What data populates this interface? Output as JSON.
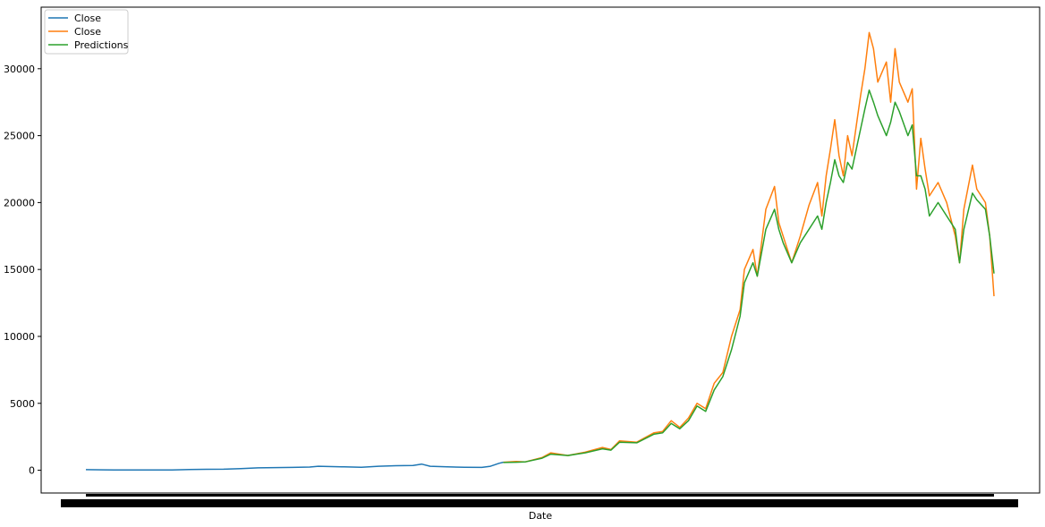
{
  "chart_data": {
    "type": "line",
    "title": "",
    "xlabel": "Date",
    "ylabel": "",
    "ylim": [
      -1700,
      34600
    ],
    "yticks": [
      0,
      5000,
      10000,
      15000,
      20000,
      25000,
      30000
    ],
    "grid": false,
    "legend_position": "top-left",
    "x_tick_labels_overlapping": true,
    "series": [
      {
        "name": "Close",
        "color": "#1f77b4",
        "points": [
          [
            0,
            45
          ],
          [
            0.02,
            30
          ],
          [
            0.04,
            20
          ],
          [
            0.06,
            15
          ],
          [
            0.08,
            15
          ],
          [
            0.1,
            25
          ],
          [
            0.12,
            50
          ],
          [
            0.14,
            70
          ],
          [
            0.16,
            80
          ],
          [
            0.18,
            120
          ],
          [
            0.2,
            180
          ],
          [
            0.22,
            200
          ],
          [
            0.24,
            210
          ],
          [
            0.26,
            240
          ],
          [
            0.27,
            300
          ],
          [
            0.3,
            250
          ],
          [
            0.32,
            220
          ],
          [
            0.34,
            300
          ],
          [
            0.36,
            340
          ],
          [
            0.38,
            360
          ],
          [
            0.39,
            460
          ],
          [
            0.4,
            300
          ],
          [
            0.42,
            250
          ],
          [
            0.44,
            220
          ],
          [
            0.46,
            210
          ],
          [
            0.47,
            300
          ],
          [
            0.48,
            520
          ],
          [
            0.485,
            600
          ]
        ]
      },
      {
        "name": "Close",
        "color": "#ff7f0e",
        "points": [
          [
            0.485,
            600
          ],
          [
            0.5,
            650
          ],
          [
            0.51,
            620
          ],
          [
            0.53,
            950
          ],
          [
            0.54,
            1300
          ],
          [
            0.56,
            1100
          ],
          [
            0.58,
            1350
          ],
          [
            0.6,
            1700
          ],
          [
            0.61,
            1550
          ],
          [
            0.62,
            2200
          ],
          [
            0.64,
            2100
          ],
          [
            0.66,
            2800
          ],
          [
            0.67,
            2900
          ],
          [
            0.68,
            3700
          ],
          [
            0.69,
            3200
          ],
          [
            0.7,
            3900
          ],
          [
            0.71,
            5000
          ],
          [
            0.72,
            4600
          ],
          [
            0.73,
            6500
          ],
          [
            0.74,
            7300
          ],
          [
            0.75,
            10000
          ],
          [
            0.76,
            12000
          ],
          [
            0.765,
            15000
          ],
          [
            0.775,
            16500
          ],
          [
            0.78,
            14500
          ],
          [
            0.79,
            19500
          ],
          [
            0.8,
            21200
          ],
          [
            0.805,
            18500
          ],
          [
            0.81,
            17500
          ],
          [
            0.82,
            15500
          ],
          [
            0.83,
            17500
          ],
          [
            0.84,
            19800
          ],
          [
            0.85,
            21500
          ],
          [
            0.855,
            19000
          ],
          [
            0.86,
            22000
          ],
          [
            0.865,
            24000
          ],
          [
            0.87,
            26200
          ],
          [
            0.875,
            23500
          ],
          [
            0.88,
            22000
          ],
          [
            0.885,
            25000
          ],
          [
            0.89,
            23500
          ],
          [
            0.9,
            28000
          ],
          [
            0.905,
            30000
          ],
          [
            0.91,
            32700
          ],
          [
            0.915,
            31500
          ],
          [
            0.92,
            29000
          ],
          [
            0.93,
            30500
          ],
          [
            0.935,
            27500
          ],
          [
            0.94,
            31500
          ],
          [
            0.945,
            29000
          ],
          [
            0.955,
            27500
          ],
          [
            0.96,
            28500
          ],
          [
            0.965,
            21000
          ],
          [
            0.97,
            24800
          ],
          [
            0.975,
            22500
          ],
          [
            0.98,
            20500
          ],
          [
            0.99,
            21500
          ],
          [
            1.0,
            20000
          ],
          [
            1.01,
            17500
          ],
          [
            1.015,
            15500
          ],
          [
            1.02,
            19500
          ],
          [
            1.03,
            22800
          ],
          [
            1.035,
            21000
          ],
          [
            1.045,
            20000
          ],
          [
            1.05,
            17500
          ],
          [
            1.055,
            13000
          ]
        ]
      },
      {
        "name": "Predictions",
        "color": "#2ca02c",
        "points": [
          [
            0.485,
            580
          ],
          [
            0.5,
            600
          ],
          [
            0.51,
            620
          ],
          [
            0.53,
            900
          ],
          [
            0.54,
            1200
          ],
          [
            0.56,
            1100
          ],
          [
            0.58,
            1300
          ],
          [
            0.6,
            1600
          ],
          [
            0.61,
            1500
          ],
          [
            0.62,
            2100
          ],
          [
            0.64,
            2050
          ],
          [
            0.66,
            2700
          ],
          [
            0.67,
            2800
          ],
          [
            0.68,
            3500
          ],
          [
            0.69,
            3100
          ],
          [
            0.7,
            3700
          ],
          [
            0.71,
            4800
          ],
          [
            0.72,
            4400
          ],
          [
            0.73,
            6000
          ],
          [
            0.74,
            7000
          ],
          [
            0.75,
            9000
          ],
          [
            0.76,
            11500
          ],
          [
            0.765,
            14000
          ],
          [
            0.775,
            15500
          ],
          [
            0.78,
            14500
          ],
          [
            0.79,
            18000
          ],
          [
            0.8,
            19500
          ],
          [
            0.805,
            18000
          ],
          [
            0.81,
            17000
          ],
          [
            0.82,
            15500
          ],
          [
            0.83,
            17000
          ],
          [
            0.84,
            18000
          ],
          [
            0.85,
            19000
          ],
          [
            0.855,
            18000
          ],
          [
            0.86,
            20000
          ],
          [
            0.865,
            21500
          ],
          [
            0.87,
            23200
          ],
          [
            0.875,
            22000
          ],
          [
            0.88,
            21500
          ],
          [
            0.885,
            23000
          ],
          [
            0.89,
            22500
          ],
          [
            0.9,
            25500
          ],
          [
            0.905,
            27000
          ],
          [
            0.91,
            28400
          ],
          [
            0.915,
            27500
          ],
          [
            0.92,
            26500
          ],
          [
            0.93,
            25000
          ],
          [
            0.935,
            26000
          ],
          [
            0.94,
            27500
          ],
          [
            0.945,
            26800
          ],
          [
            0.955,
            25000
          ],
          [
            0.96,
            25800
          ],
          [
            0.965,
            22000
          ],
          [
            0.97,
            22000
          ],
          [
            0.975,
            21000
          ],
          [
            0.98,
            19000
          ],
          [
            0.99,
            20000
          ],
          [
            1.0,
            19000
          ],
          [
            1.01,
            18000
          ],
          [
            1.015,
            15500
          ],
          [
            1.02,
            18000
          ],
          [
            1.03,
            20700
          ],
          [
            1.035,
            20200
          ],
          [
            1.045,
            19500
          ],
          [
            1.05,
            17500
          ],
          [
            1.055,
            14700
          ]
        ]
      }
    ]
  }
}
